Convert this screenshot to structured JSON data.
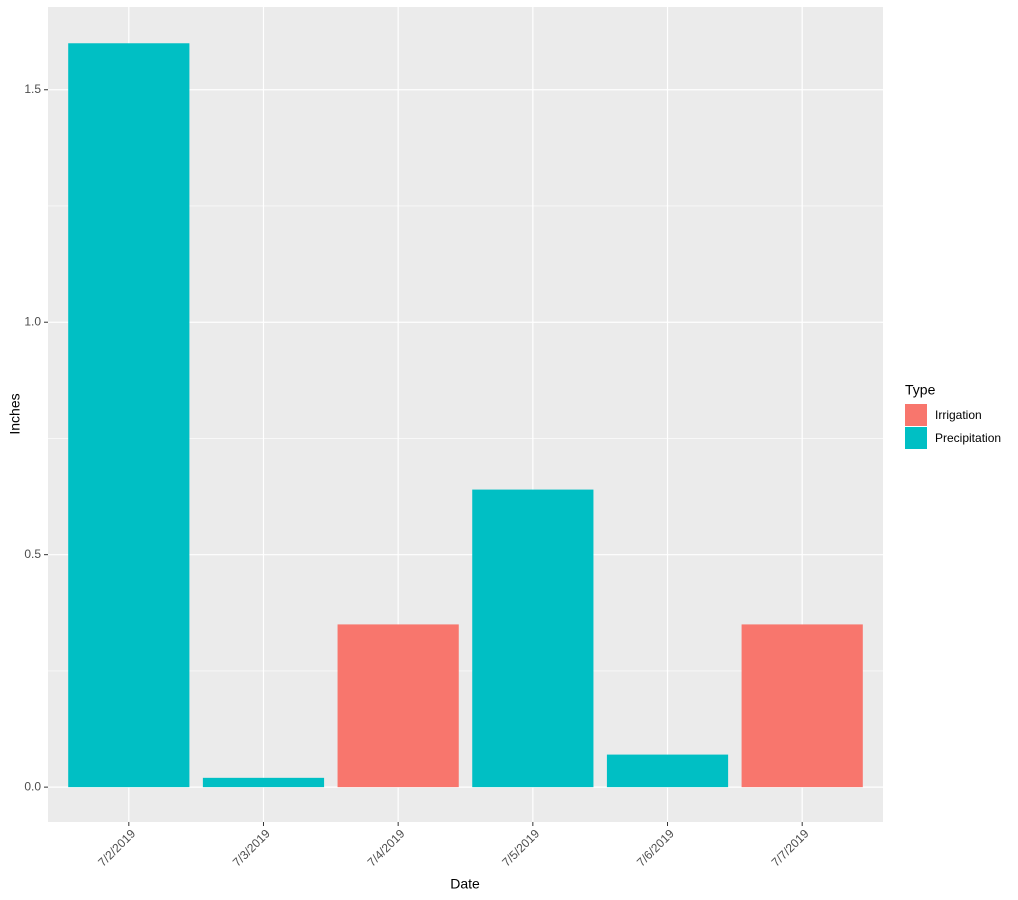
{
  "chart_data": {
    "type": "bar",
    "stacked": true,
    "x_label": "Date",
    "y_label": "Inches",
    "categories": [
      "7/2/2019",
      "7/3/2019",
      "7/4/2019",
      "7/5/2019",
      "7/6/2019",
      "7/7/2019"
    ],
    "series": [
      {
        "name": "Irrigation",
        "color": "#f8766d",
        "values": [
          null,
          null,
          0.35,
          null,
          null,
          0.35
        ]
      },
      {
        "name": "Precipitation",
        "color": "#00bfc4",
        "values": [
          1.6,
          0.02,
          null,
          0.64,
          0.07,
          null
        ]
      }
    ],
    "legend_title": "Type",
    "legend": "right",
    "ylim": [
      -0.075,
      1.678
    ],
    "yticks": [
      {
        "value": 0,
        "label": "0.0"
      },
      0.5,
      {
        "value": 1,
        "label": "1.0"
      },
      1.5
    ],
    "grid": true
  }
}
